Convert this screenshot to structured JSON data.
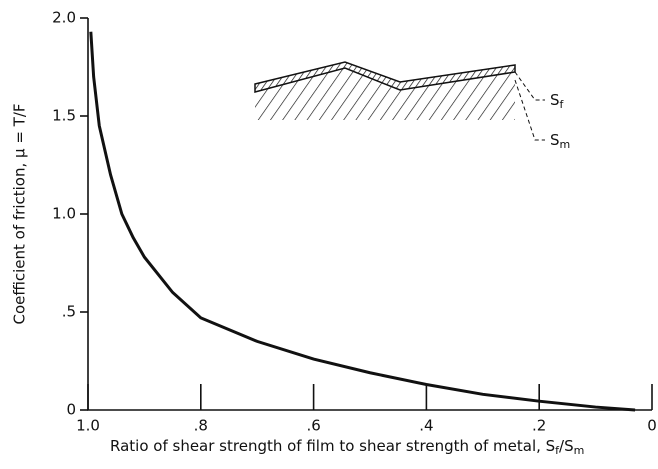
{
  "chart_data": {
    "type": "line",
    "ylabel": "Coefficient of friction,  μ = T/F",
    "xlabel_parts": [
      "Ratio of shear strength of film to shear strength of metal,  S",
      "f",
      "/S",
      "m"
    ],
    "x": [
      0.995,
      0.99,
      0.98,
      0.96,
      0.94,
      0.92,
      0.9,
      0.85,
      0.8,
      0.7,
      0.6,
      0.5,
      0.4,
      0.3,
      0.2,
      0.1,
      0.03
    ],
    "series": [
      {
        "color": "#111111",
        "values": [
          1.93,
          1.7,
          1.45,
          1.2,
          1.0,
          0.88,
          0.78,
          0.6,
          0.47,
          0.35,
          0.26,
          0.19,
          0.13,
          0.08,
          0.045,
          0.015,
          0
        ]
      }
    ],
    "xlim": [
      1.0,
      0
    ],
    "xticks": [
      {
        "value": 1.0,
        "label": "1.0"
      },
      {
        "value": 0.8,
        "label": ".8"
      },
      {
        "value": 0.6,
        "label": ".6"
      },
      {
        "value": 0.4,
        "label": ".4"
      },
      {
        "value": 0.2,
        "label": ".2"
      },
      0
    ],
    "ylim": [
      0,
      2.0
    ],
    "yticks": [
      0,
      {
        "value": 0.5,
        "label": ".5"
      },
      {
        "value": 1.0,
        "label": "1.0"
      },
      {
        "value": 1.5,
        "label": "1.5"
      },
      {
        "value": 2.0,
        "label": "2.0"
      }
    ],
    "inset": {
      "film_label": [
        "S",
        "f"
      ],
      "metal_label": [
        "S",
        "m"
      ]
    }
  }
}
